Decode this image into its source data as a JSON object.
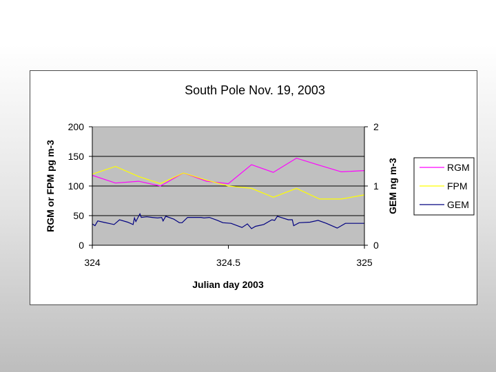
{
  "chart_data": {
    "type": "line",
    "title": "South Pole  Nov. 19, 2003",
    "xlabel": "Julian day 2003",
    "ylabel_left": "RGM or FPM  pg m-3",
    "ylabel_right": "GEM  ng m-3",
    "xlim": [
      324,
      325
    ],
    "ylim_left": [
      0,
      200
    ],
    "ylim_right": [
      0,
      2
    ],
    "x_ticks": [
      "324",
      "324.5",
      "325"
    ],
    "x_tick_values": [
      324,
      324.5,
      325
    ],
    "y_ticks_left": [
      "0",
      "50",
      "100",
      "150",
      "200"
    ],
    "y_tick_values_left": [
      0,
      50,
      100,
      150,
      200
    ],
    "y_ticks_right": [
      "0",
      "1",
      "2"
    ],
    "y_tick_values_right": [
      0,
      1,
      2
    ],
    "grid": "horizontal",
    "plot_background": "#c0c0c0",
    "legend_position": "right",
    "series": [
      {
        "name": "RGM",
        "color": "#ff00ff",
        "axis": "left",
        "x": [
          324.0,
          324.085,
          324.17,
          324.25,
          324.335,
          324.42,
          324.5,
          324.585,
          324.665,
          324.75,
          324.835,
          324.915,
          325.0
        ],
        "y": [
          118,
          105,
          108,
          100,
          122,
          108,
          104,
          136,
          123,
          147,
          135,
          124,
          126
        ]
      },
      {
        "name": "FPM",
        "color": "#ffff00",
        "axis": "left",
        "x": [
          324.0,
          324.085,
          324.17,
          324.25,
          324.335,
          324.42,
          324.5,
          324.585,
          324.665,
          324.75,
          324.835,
          324.915,
          325.0
        ],
        "y": [
          120,
          133,
          116,
          104,
          122,
          110,
          100,
          96,
          81,
          96,
          78,
          78,
          85
        ]
      },
      {
        "name": "GEM",
        "color": "#000080",
        "axis": "right",
        "x": [
          324.0,
          324.01,
          324.02,
          324.04,
          324.08,
          324.1,
          324.13,
          324.15,
          324.155,
          324.16,
          324.175,
          324.18,
          324.2,
          324.22,
          324.24,
          324.255,
          324.26,
          324.27,
          324.3,
          324.32,
          324.33,
          324.35,
          324.38,
          324.4,
          324.41,
          324.43,
          324.46,
          324.48,
          324.51,
          324.55,
          324.57,
          324.585,
          324.6,
          324.63,
          324.66,
          324.67,
          324.68,
          324.72,
          324.735,
          324.74,
          324.76,
          324.8,
          324.83,
          324.86,
          324.9,
          324.93,
          324.95,
          325.0
        ],
        "y": [
          0.36,
          0.33,
          0.41,
          0.39,
          0.35,
          0.43,
          0.39,
          0.35,
          0.46,
          0.4,
          0.53,
          0.47,
          0.48,
          0.47,
          0.46,
          0.47,
          0.41,
          0.49,
          0.44,
          0.38,
          0.38,
          0.47,
          0.47,
          0.47,
          0.46,
          0.47,
          0.42,
          0.38,
          0.37,
          0.3,
          0.36,
          0.28,
          0.32,
          0.35,
          0.43,
          0.42,
          0.49,
          0.43,
          0.43,
          0.33,
          0.38,
          0.39,
          0.42,
          0.37,
          0.29,
          0.37,
          0.37,
          0.37
        ]
      }
    ]
  }
}
